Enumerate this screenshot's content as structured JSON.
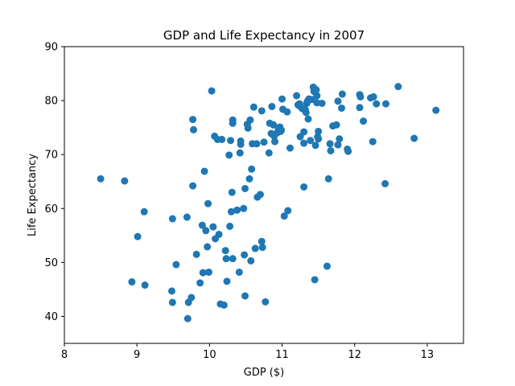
{
  "chart_data": {
    "type": "scatter",
    "title": "GDP and Life Expectancy in 2007",
    "xlabel": "GDP ($)",
    "ylabel": "Life Expectancy",
    "xlim": [
      8,
      13.5
    ],
    "ylim": [
      35,
      90
    ],
    "xticks": [
      8,
      9,
      10,
      11,
      12,
      13
    ],
    "yticks": [
      40,
      50,
      60,
      70,
      80,
      90
    ],
    "xtick_labels": [
      "8",
      "9",
      "10",
      "11",
      "12",
      "13"
    ],
    "ytick_labels": [
      "40",
      "50",
      "60",
      "70",
      "80",
      "90"
    ],
    "grid": false,
    "color": "#1f77b4",
    "points": [
      [
        8.5,
        65.5
      ],
      [
        8.83,
        65.1
      ],
      [
        9.01,
        54.8
      ],
      [
        9.1,
        59.4
      ],
      [
        8.93,
        46.4
      ],
      [
        9.11,
        45.8
      ],
      [
        9.49,
        58.1
      ],
      [
        9.54,
        49.6
      ],
      [
        9.48,
        44.7
      ],
      [
        9.49,
        42.6
      ],
      [
        9.69,
        58.4
      ],
      [
        9.7,
        39.6
      ],
      [
        9.71,
        42.6
      ],
      [
        9.75,
        43.5
      ],
      [
        9.77,
        64.2
      ],
      [
        9.77,
        76.5
      ],
      [
        9.78,
        74.6
      ],
      [
        9.82,
        51.5
      ],
      [
        9.87,
        46.2
      ],
      [
        9.9,
        56.9
      ],
      [
        9.91,
        48.1
      ],
      [
        9.93,
        66.9
      ],
      [
        9.95,
        55.9
      ],
      [
        9.98,
        60.9
      ],
      [
        9.97,
        52.9
      ],
      [
        9.99,
        48.2
      ],
      [
        10.03,
        81.8
      ],
      [
        10.05,
        56.6
      ],
      [
        10.07,
        73.4
      ],
      [
        10.08,
        54.4
      ],
      [
        10.11,
        72.8
      ],
      [
        10.13,
        55.2
      ],
      [
        10.15,
        42.3
      ],
      [
        10.17,
        72.8
      ],
      [
        10.2,
        42.1
      ],
      [
        10.22,
        52.2
      ],
      [
        10.23,
        50.7
      ],
      [
        10.24,
        46.5
      ],
      [
        10.27,
        69.9
      ],
      [
        10.28,
        56.7
      ],
      [
        10.29,
        72.6
      ],
      [
        10.3,
        59.4
      ],
      [
        10.31,
        63.0
      ],
      [
        10.32,
        75.8
      ],
      [
        10.32,
        76.4
      ],
      [
        10.32,
        50.7
      ],
      [
        10.38,
        59.7
      ],
      [
        10.41,
        48.2
      ],
      [
        10.42,
        70.3
      ],
      [
        10.43,
        72.5
      ],
      [
        10.43,
        71.9
      ],
      [
        10.47,
        60.0
      ],
      [
        10.48,
        51.4
      ],
      [
        10.49,
        63.7
      ],
      [
        10.49,
        43.8
      ],
      [
        10.52,
        75.6
      ],
      [
        10.53,
        74.9
      ],
      [
        10.55,
        65.5
      ],
      [
        10.56,
        76.4
      ],
      [
        10.57,
        50.3
      ],
      [
        10.58,
        67.3
      ],
      [
        10.59,
        72.0
      ],
      [
        10.61,
        78.8
      ],
      [
        10.63,
        52.6
      ],
      [
        10.65,
        72.0
      ],
      [
        10.66,
        62.1
      ],
      [
        10.7,
        62.6
      ],
      [
        10.72,
        78.1
      ],
      [
        10.72,
        53.9
      ],
      [
        10.73,
        52.8
      ],
      [
        10.75,
        72.3
      ],
      [
        10.77,
        42.7
      ],
      [
        10.82,
        70.3
      ],
      [
        10.83,
        75.8
      ],
      [
        10.86,
        78.9
      ],
      [
        10.85,
        73.9
      ],
      [
        10.88,
        75.5
      ],
      [
        10.89,
        73.4
      ],
      [
        10.9,
        72.4
      ],
      [
        10.93,
        74.0
      ],
      [
        10.95,
        74.9
      ],
      [
        10.97,
        75.1
      ],
      [
        10.98,
        74.3
      ],
      [
        10.99,
        74.5
      ],
      [
        11.0,
        80.3
      ],
      [
        11.01,
        78.4
      ],
      [
        11.03,
        58.6
      ],
      [
        11.07,
        77.9
      ],
      [
        11.08,
        59.6
      ],
      [
        11.11,
        71.2
      ],
      [
        11.2,
        80.9
      ],
      [
        11.22,
        79.2
      ],
      [
        11.24,
        79.4
      ],
      [
        11.25,
        73.3
      ],
      [
        11.25,
        78.9
      ],
      [
        11.28,
        78.5
      ],
      [
        11.3,
        64.0
      ],
      [
        11.3,
        74.2
      ],
      [
        11.3,
        72.1
      ],
      [
        11.32,
        78.3
      ],
      [
        11.33,
        77.8
      ],
      [
        11.34,
        79.5
      ],
      [
        11.35,
        79.9
      ],
      [
        11.36,
        76.6
      ],
      [
        11.37,
        80.3
      ],
      [
        11.39,
        72.6
      ],
      [
        11.41,
        80.2
      ],
      [
        11.43,
        82.5
      ],
      [
        11.44,
        81.7
      ],
      [
        11.45,
        46.8
      ],
      [
        11.46,
        71.7
      ],
      [
        11.47,
        82.0
      ],
      [
        11.48,
        80.9
      ],
      [
        11.48,
        79.6
      ],
      [
        11.49,
        73.3
      ],
      [
        11.5,
        74.3
      ],
      [
        11.5,
        72.9
      ],
      [
        11.55,
        79.5
      ],
      [
        11.62,
        49.3
      ],
      [
        11.64,
        65.5
      ],
      [
        11.66,
        72.0
      ],
      [
        11.67,
        70.7
      ],
      [
        11.7,
        75.3
      ],
      [
        11.75,
        75.5
      ],
      [
        11.77,
        79.9
      ],
      [
        11.77,
        71.8
      ],
      [
        11.79,
        72.9
      ],
      [
        11.82,
        78.6
      ],
      [
        11.83,
        81.2
      ],
      [
        11.9,
        71.0
      ],
      [
        11.91,
        70.6
      ],
      [
        12.07,
        81.1
      ],
      [
        12.07,
        78.7
      ],
      [
        12.08,
        80.7
      ],
      [
        12.12,
        76.2
      ],
      [
        12.22,
        80.5
      ],
      [
        12.25,
        72.4
      ],
      [
        12.26,
        80.7
      ],
      [
        12.3,
        79.4
      ],
      [
        12.42,
        64.6
      ],
      [
        12.43,
        79.4
      ],
      [
        12.6,
        82.6
      ],
      [
        12.82,
        73.0
      ],
      [
        13.12,
        78.2
      ]
    ]
  }
}
